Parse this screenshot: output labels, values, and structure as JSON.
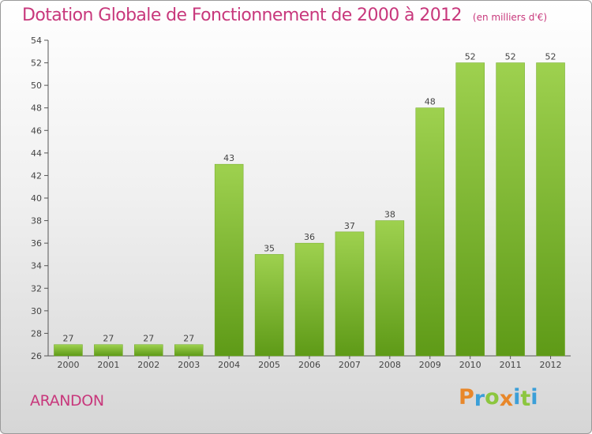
{
  "title": "Dotation Globale de Fonctionnement de 2000 à 2012",
  "unit": "(en milliers d'€)",
  "commune": "ARANDON",
  "logo": {
    "letters": [
      "P",
      "r",
      "o",
      "x",
      "i",
      "t",
      "i"
    ],
    "colors": [
      "#e8872a",
      "#3b9fd8",
      "#8cc63f",
      "#e8872a",
      "#3b9fd8",
      "#8cc63f",
      "#3b9fd8"
    ]
  },
  "colors": {
    "bar_top": "#9ed14f",
    "bar_bottom": "#5e9a17",
    "title": "#c8387c"
  },
  "chart_data": {
    "type": "bar",
    "categories": [
      "2000",
      "2001",
      "2002",
      "2003",
      "2004",
      "2005",
      "2006",
      "2007",
      "2008",
      "2009",
      "2010",
      "2011",
      "2012"
    ],
    "values": [
      27,
      27,
      27,
      27,
      43,
      35,
      36,
      37,
      38,
      48,
      52,
      52,
      52
    ],
    "title": "Dotation Globale de Fonctionnement de 2000 à 2012",
    "ylim": [
      26,
      54
    ],
    "yticks": [
      26,
      28,
      30,
      32,
      34,
      36,
      38,
      40,
      42,
      44,
      46,
      48,
      50,
      52,
      54
    ],
    "grid": false,
    "data_labels": true
  }
}
